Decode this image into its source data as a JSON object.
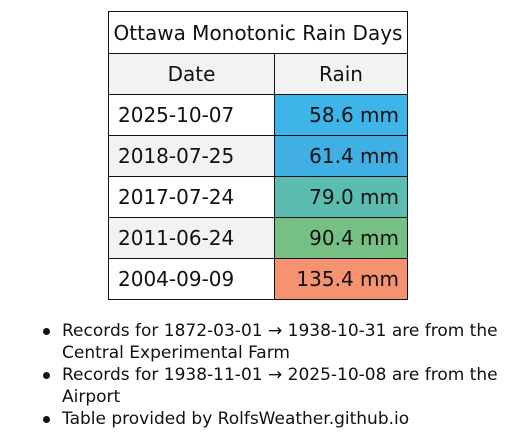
{
  "table": {
    "title": "Ottawa Monotonic Rain Days",
    "columns": [
      "Date",
      "Rain"
    ],
    "rows": [
      {
        "date": "2025-10-07",
        "rain": "58.6 mm",
        "color": "#3db5e9"
      },
      {
        "date": "2018-07-25",
        "rain": "61.4 mm",
        "color": "#40b0e4"
      },
      {
        "date": "2017-07-24",
        "rain": "79.0 mm",
        "color": "#5bbcb0"
      },
      {
        "date": "2011-06-24",
        "rain": "90.4 mm",
        "color": "#76c085"
      },
      {
        "date": "2004-09-09",
        "rain": "135.4 mm",
        "color": "#f5926f"
      }
    ]
  },
  "notes": [
    "Records for 1872-03-01 → 1938-10-31 are from the Central Experimental Farm",
    "Records for 1938-11-01 → 2025-10-08 are from the Airport",
    "Table provided by RolfsWeather.github.io"
  ]
}
